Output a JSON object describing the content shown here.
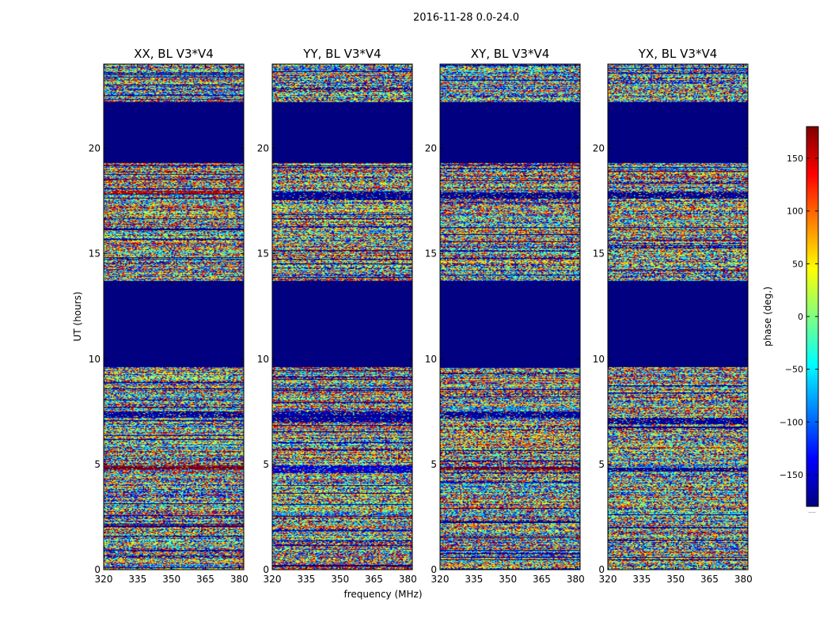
{
  "figure": {
    "suptitle": "2016-11-28 0.0-24.0",
    "xlabel": "frequency (MHz)",
    "ylabel": "UT (hours)",
    "colorbar_label": "phase (deg.)",
    "colorbar_min_marker": "....."
  },
  "chart_data": {
    "type": "heatmap",
    "colormap": "jet",
    "clim": [
      -180,
      180
    ],
    "colorbar_ticks": [
      -150,
      -100,
      -50,
      0,
      50,
      100,
      150
    ],
    "colorbar_tick_labels": [
      "−150",
      "−100",
      "−50",
      "0",
      "50",
      "100",
      "150"
    ],
    "panels": [
      {
        "title": "XX, BL V3*V4",
        "speckle_seed": 11,
        "stripes": [
          {
            "t0": 7.2,
            "t1": 7.5,
            "phase": -170
          },
          {
            "t0": 4.75,
            "t1": 4.95,
            "phase": 170
          },
          {
            "t0": 17.8,
            "t1": 18.0,
            "phase": 160
          }
        ]
      },
      {
        "title": "YY, BL V3*V4",
        "speckle_seed": 23,
        "stripes": [
          {
            "t0": 4.6,
            "t1": 4.95,
            "phase": -150
          },
          {
            "t0": 17.55,
            "t1": 17.95,
            "phase": -170
          },
          {
            "t0": 7.0,
            "t1": 7.5,
            "phase": -165
          }
        ]
      },
      {
        "title": "XY, BL V3*V4",
        "speckle_seed": 37,
        "stripes": [
          {
            "t0": 7.2,
            "t1": 7.5,
            "phase": -170
          },
          {
            "t0": 4.75,
            "t1": 4.9,
            "phase": 170
          },
          {
            "t0": 17.6,
            "t1": 17.9,
            "phase": -175
          }
        ]
      },
      {
        "title": "YX, BL V3*V4",
        "speckle_seed": 53,
        "stripes": [
          {
            "t0": 6.9,
            "t1": 7.2,
            "phase": -170
          },
          {
            "t0": 17.6,
            "t1": 17.9,
            "phase": -175
          },
          {
            "t0": 4.7,
            "t1": 4.85,
            "phase": -175
          }
        ]
      }
    ],
    "x_axis": {
      "range": [
        320,
        382
      ],
      "ticks": [
        320,
        335,
        350,
        365,
        380
      ]
    },
    "y_axis": {
      "range": [
        0,
        24
      ],
      "ticks": [
        0,
        5,
        10,
        15,
        20
      ]
    },
    "flagged_hours": [
      [
        9.6,
        13.7
      ],
      [
        19.3,
        22.2
      ]
    ],
    "flag_value": -180
  }
}
